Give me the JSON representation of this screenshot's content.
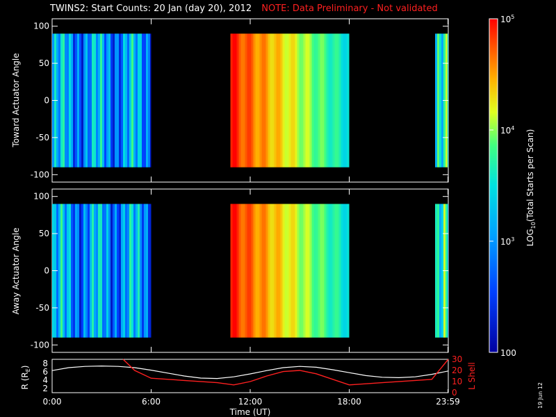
{
  "title": {
    "main": "TWINS2: Start Counts: 20 Jan (day  20), 2012",
    "note": "NOTE: Data Preliminary - Not validated"
  },
  "stamp": "19 Jun 12",
  "colors": {
    "note": "#ff2020",
    "axis": "#ffffff",
    "background": "#000000",
    "lshell": "#ff2020",
    "radius": "#ffffff"
  },
  "chart_data": [
    {
      "type": "heatmap",
      "name": "toward-panel",
      "ylabel": "Toward Actuator Angle",
      "ylim": [
        -110,
        110
      ],
      "yticks": [
        100,
        50,
        0,
        -50,
        -100
      ],
      "data_angle_range": [
        -90,
        90
      ],
      "xlim": [
        0,
        24
      ],
      "data_segments_hours": [
        [
          0,
          6.0
        ],
        [
          10.8,
          18.0
        ],
        [
          23.2,
          24
        ]
      ],
      "log_counts_by_segment": [
        3.0,
        4.1,
        3.3
      ]
    },
    {
      "type": "heatmap",
      "name": "away-panel",
      "ylabel": "Away Actuator Angle",
      "ylim": [
        -110,
        110
      ],
      "yticks": [
        100,
        50,
        0,
        -50,
        -100
      ],
      "data_angle_range": [
        -90,
        90
      ],
      "xlim": [
        0,
        24
      ],
      "data_segments_hours": [
        [
          0,
          6.0
        ],
        [
          10.8,
          18.0
        ],
        [
          23.2,
          24
        ]
      ],
      "log_counts_by_segment": [
        3.0,
        4.1,
        3.3
      ]
    },
    {
      "type": "line",
      "name": "orbit-panel",
      "xlabel": "Time (UT)",
      "xticks": [
        "0:00",
        "6:00",
        "12:00",
        "18:00",
        "23:59"
      ],
      "xtick_hours": [
        0,
        6,
        12,
        18,
        23.98
      ],
      "ylabel_left": "R (RE)",
      "ylabel_right": "L Shell",
      "ylim_left": [
        1,
        9
      ],
      "yticks_left": [
        8,
        6,
        4,
        2
      ],
      "ylim_right": [
        0,
        30
      ],
      "yticks_right": [
        30,
        20,
        10,
        0
      ],
      "series": [
        {
          "name": "R",
          "axis": "left",
          "x": [
            0,
            1,
            2,
            3,
            4,
            5,
            6,
            7,
            8,
            9,
            10,
            11,
            12,
            13,
            14,
            15,
            16,
            17,
            18,
            19,
            20,
            21,
            22,
            23,
            24
          ],
          "y": [
            6.3,
            7.0,
            7.3,
            7.4,
            7.3,
            7.0,
            6.4,
            5.7,
            5.0,
            4.5,
            4.4,
            4.8,
            5.5,
            6.3,
            7.0,
            7.3,
            7.1,
            6.5,
            5.8,
            5.1,
            4.7,
            4.6,
            4.8,
            5.4,
            6.2
          ]
        },
        {
          "name": "L Shell",
          "axis": "right",
          "x": [
            4.3,
            5.0,
            6.0,
            8.0,
            10.0,
            11.0,
            12.0,
            13.0,
            14.0,
            15.0,
            16.0,
            17.0,
            18.0,
            20.0,
            22.0,
            23.0,
            24.0
          ],
          "y": [
            30,
            20,
            13,
            11,
            9,
            7,
            10,
            15,
            19,
            20,
            17,
            12,
            7,
            9,
            11,
            12,
            30
          ]
        }
      ]
    }
  ],
  "colorbar": {
    "label": "LOG10(Total Starts per Scan)",
    "min_log": 2,
    "max_log": 5,
    "ticks": [
      {
        "log": 5,
        "text": "10",
        "sup": "5"
      },
      {
        "log": 4,
        "text": "10",
        "sup": "4"
      },
      {
        "log": 3,
        "text": "10",
        "sup": "3"
      },
      {
        "log": 2,
        "text": "100",
        "sup": ""
      }
    ]
  }
}
